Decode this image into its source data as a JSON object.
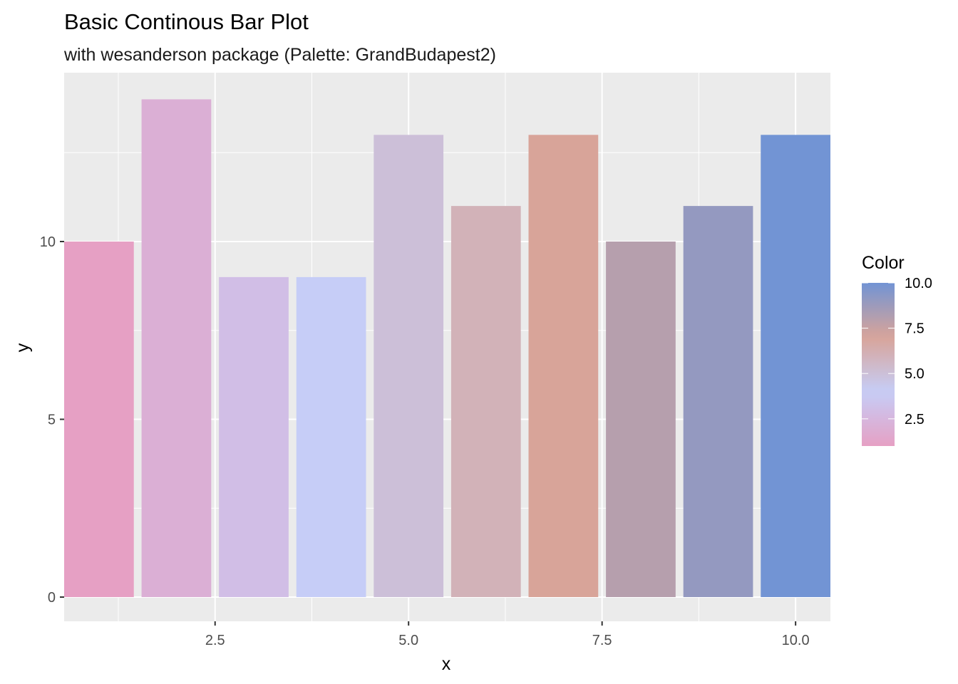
{
  "chart_data": {
    "type": "bar",
    "title": "Basic Continous Bar Plot",
    "subtitle": "with wesanderson package (Palette: GrandBudapest2)",
    "xlabel": "x",
    "ylabel": "y",
    "x": [
      1,
      2,
      3,
      4,
      5,
      6,
      7,
      8,
      9,
      10
    ],
    "values": [
      10,
      14,
      9,
      9,
      13,
      11,
      13,
      10,
      11,
      13
    ],
    "fill_values": [
      1,
      2,
      3,
      4,
      5,
      6,
      7,
      8,
      9,
      10
    ],
    "xlim": [
      0.55,
      10.45
    ],
    "ylim": [
      0,
      14
    ],
    "x_ticks": [
      2.5,
      5.0,
      7.5,
      10.0
    ],
    "x_tick_labels": [
      "2.5",
      "5.0",
      "7.5",
      "10.0"
    ],
    "y_ticks": [
      0,
      5,
      10
    ],
    "y_tick_labels": [
      "0",
      "5",
      "10"
    ],
    "grid": true,
    "legend": {
      "title": "Color",
      "placement": "right",
      "range": [
        1,
        10
      ],
      "ticks": [
        2.5,
        5.0,
        7.5,
        10.0
      ],
      "tick_labels": [
        "2.5",
        "5.0",
        "7.5",
        "10.0"
      ],
      "palette": [
        "#E6A0C4",
        "#C6CDF7",
        "#D8A499",
        "#7294D4"
      ]
    },
    "panel_background": "#EBEBEB",
    "grid_color": "#FFFFFF"
  }
}
